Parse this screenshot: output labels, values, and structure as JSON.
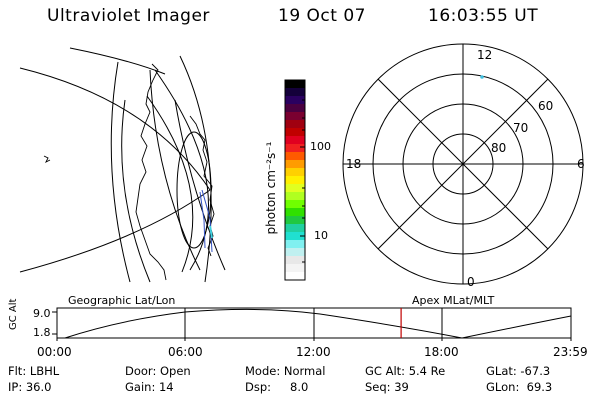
{
  "header": {
    "title": "Ultraviolet Imager",
    "date": "19 Oct 07",
    "time": "16:03:55 UT"
  },
  "colorbar": {
    "unit_label": "photon cm⁻²s⁻¹",
    "tick_labels": [
      "100",
      "10"
    ],
    "colors": [
      "#000000",
      "#14003a",
      "#2a0060",
      "#4a0040",
      "#7a0030",
      "#a00010",
      "#c00000",
      "#e00020",
      "#f02020",
      "#ff5a00",
      "#ff9c00",
      "#ffd000",
      "#fff000",
      "#e0ff20",
      "#b0ff20",
      "#70ff00",
      "#30e000",
      "#20c840",
      "#20d0a0",
      "#20e0d0",
      "#80f0f0",
      "#c0f0f0",
      "#e8e8e8",
      "#f4f4f4",
      "#ffffff"
    ]
  },
  "polar": {
    "top_label": "12",
    "left_label": "18",
    "right_label": "6",
    "bottom_label": "0",
    "ring_labels": [
      "60",
      "70",
      "80"
    ]
  },
  "timeline": {
    "left_title": "Geographic Lat/Lon",
    "right_title": "Apex MLat/MLT",
    "axis_label": "GC Alt",
    "y_top": "9.0",
    "y_bottom": "1.8",
    "x_ticks": [
      "00:00",
      "06:00",
      "12:00",
      "18:00",
      "23:59"
    ],
    "marker_time_hours": 16.065,
    "marker_color": "#c00000"
  },
  "info": {
    "flt": "Flt: LBHL",
    "door": "Door: Open",
    "mode": "Mode: Normal",
    "gc_alt": "GC Alt: 5.4 Re",
    "glat": "GLat: -67.3",
    "ip": "IP: 36.0",
    "gain": "Gain: 14",
    "dsp_label": "Dsp:",
    "dsp_value": "8.0",
    "seq": "Seq: 39",
    "glon": "GLon:  69.3"
  }
}
